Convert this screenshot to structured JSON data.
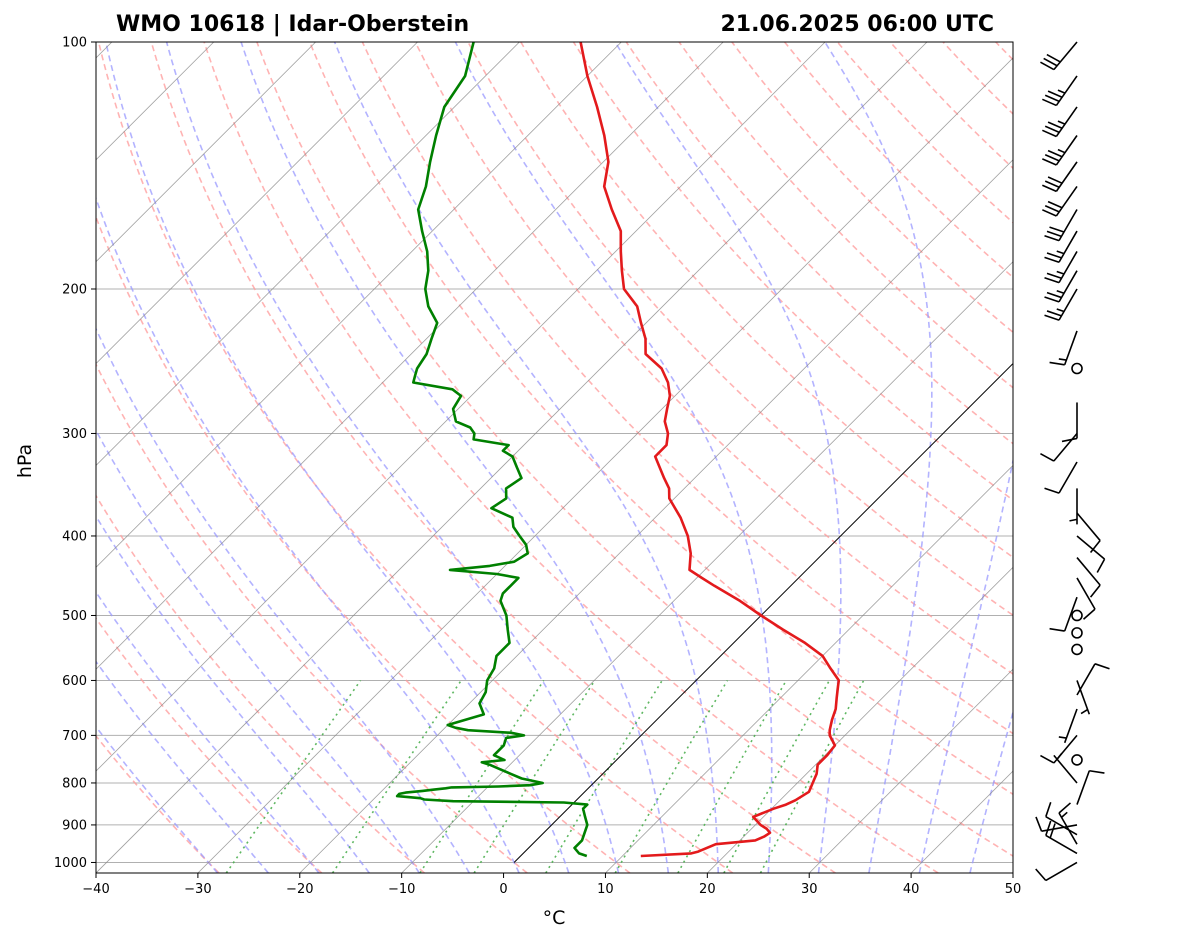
{
  "chart_data": {
    "type": "line",
    "title": "WMO 10618 | Idar-Oberstein",
    "datetime": "21.06.2025 06:00 UTC",
    "xlabel": "°C",
    "ylabel": "hPa",
    "xlim": [
      -40,
      50
    ],
    "ylim": [
      1030,
      100
    ],
    "y_scale": "log",
    "x_ticks": [
      -40,
      -30,
      -20,
      -10,
      0,
      10,
      20,
      30,
      40,
      50
    ],
    "x_tick_labels": [
      "−40",
      "−30",
      "−20",
      "−10",
      "0",
      "10",
      "20",
      "30",
      "40",
      "50"
    ],
    "y_ticks": [
      100,
      200,
      300,
      400,
      500,
      600,
      700,
      800,
      900,
      1000
    ],
    "y_tick_labels": [
      "100",
      "200",
      "300",
      "400",
      "500",
      "600",
      "700",
      "800",
      "900",
      "1000"
    ],
    "grid": true,
    "colors": {
      "temperature": "#e31a1c",
      "dewpoint": "#008000",
      "dry_adiabats": "#ff9999",
      "moist_adiabats": "#9999ff",
      "mixing_ratio": "#4caf50",
      "isotherms": "#888888",
      "zero_isotherm": "#000000"
    },
    "series": [
      {
        "name": "Temperature",
        "pressure": [
          982,
          975,
          970,
          950,
          940,
          930,
          920,
          910,
          900,
          880,
          860,
          850,
          840,
          820,
          800,
          780,
          760,
          740,
          720,
          700,
          690,
          670,
          650,
          630,
          610,
          600,
          580,
          560,
          540,
          520,
          500,
          480,
          460,
          450,
          440,
          420,
          400,
          380,
          360,
          350,
          340,
          320,
          310,
          300,
          290,
          280,
          270,
          260,
          250,
          240,
          230,
          220,
          210,
          200,
          190,
          180,
          170,
          160,
          150,
          140,
          130,
          120,
          110,
          100
        ],
        "temp": [
          11.8,
          16.5,
          17.0,
          18.0,
          21.5,
          22.0,
          22.2,
          21.5,
          20.5,
          19.0,
          20.2,
          21.0,
          21.5,
          22.0,
          21.5,
          21.0,
          20.2,
          20.2,
          20.0,
          18.5,
          18.0,
          17.2,
          16.5,
          15.5,
          14.5,
          14.0,
          12.0,
          10.0,
          7.0,
          3.5,
          0.0,
          -3.5,
          -7.5,
          -9.5,
          -11.5,
          -13.0,
          -15.0,
          -17.5,
          -20.5,
          -21.5,
          -23.0,
          -26.0,
          -26.0,
          -27.0,
          -28.5,
          -29.5,
          -30.5,
          -32.0,
          -34.0,
          -37.0,
          -38.5,
          -40.5,
          -42.5,
          -45.5,
          -47.5,
          -49.5,
          -51.5,
          -54.5,
          -57.5,
          -59.5,
          -62.5,
          -66.0,
          -70.0,
          -74.0
        ]
      },
      {
        "name": "Dewpoint",
        "pressure": [
          982,
          975,
          960,
          940,
          920,
          900,
          880,
          860,
          850,
          845,
          842,
          838,
          835,
          830,
          825,
          822,
          818,
          815,
          812,
          810,
          808,
          805,
          800,
          790,
          780,
          770,
          760,
          755,
          750,
          740,
          720,
          705,
          700,
          695,
          690,
          685,
          680,
          660,
          640,
          620,
          600,
          580,
          560,
          540,
          520,
          500,
          480,
          470,
          460,
          450,
          445,
          440,
          435,
          430,
          420,
          410,
          400,
          390,
          380,
          370,
          360,
          350,
          340,
          330,
          320,
          315,
          310,
          305,
          300,
          295,
          290,
          280,
          270,
          265,
          260,
          255,
          250,
          240,
          230,
          220,
          210,
          200,
          190,
          180,
          170,
          160,
          150,
          140,
          130,
          120,
          110,
          100
        ],
        "dewp": [
          6.5,
          5.5,
          4.5,
          4.5,
          4.0,
          3.5,
          2.5,
          1.5,
          1.5,
          -1.0,
          -12.0,
          -15.0,
          -15.5,
          -18.0,
          -18.0,
          -17.5,
          -16.0,
          -15.0,
          -14.0,
          -13.5,
          -9.0,
          -6.0,
          -5.0,
          -7.5,
          -9.0,
          -10.5,
          -12.0,
          -13.0,
          -11.0,
          -12.5,
          -12.5,
          -13.0,
          -11.5,
          -13.0,
          -17.5,
          -19.0,
          -20.0,
          -17.5,
          -19.0,
          -19.5,
          -20.5,
          -21.0,
          -22.0,
          -22.0,
          -23.5,
          -25.0,
          -27.0,
          -27.5,
          -27.5,
          -27.5,
          -30.0,
          -35.0,
          -31.5,
          -29.5,
          -29.0,
          -30.0,
          -31.5,
          -33.0,
          -34.0,
          -37.0,
          -36.5,
          -37.5,
          -37.0,
          -38.5,
          -40.0,
          -41.5,
          -41.5,
          -45.5,
          -46.0,
          -47.0,
          -49.0,
          -50.5,
          -51.0,
          -52.5,
          -57.0,
          -57.5,
          -58.0,
          -58.5,
          -59.5,
          -60.5,
          -63.0,
          -65.0,
          -66.5,
          -68.5,
          -71.0,
          -73.5,
          -75.0,
          -77.0,
          -79.0,
          -81.0,
          -82.0,
          -84.5
        ]
      }
    ],
    "wind_barbs": [
      {
        "p": 1000,
        "speed": 10,
        "dir": 240
      },
      {
        "p": 975,
        "speed": 20,
        "dir": 300
      },
      {
        "p": 950,
        "speed": 15,
        "dir": 330
      },
      {
        "p": 925,
        "speed": 10,
        "dir": 300
      },
      {
        "p": 900,
        "speed": 10,
        "dir": 260
      },
      {
        "p": 850,
        "speed": 10,
        "dir": 20
      },
      {
        "p": 800,
        "speed": 5,
        "dir": 320
      },
      {
        "p": 750,
        "speed": 0,
        "dir": 0
      },
      {
        "p": 700,
        "speed": 10,
        "dir": 220
      },
      {
        "p": 650,
        "speed": 5,
        "dir": 200
      },
      {
        "p": 625,
        "speed": 10,
        "dir": 30
      },
      {
        "p": 600,
        "speed": 5,
        "dir": 160
      },
      {
        "p": 550,
        "speed": 0,
        "dir": 0
      },
      {
        "p": 525,
        "speed": 0,
        "dir": 0
      },
      {
        "p": 500,
        "speed": 0,
        "dir": 0
      },
      {
        "p": 475,
        "speed": 10,
        "dir": 200
      },
      {
        "p": 450,
        "speed": 10,
        "dir": 150
      },
      {
        "p": 425,
        "speed": 10,
        "dir": 140
      },
      {
        "p": 400,
        "speed": 10,
        "dir": 130
      },
      {
        "p": 375,
        "speed": 10,
        "dir": 140
      },
      {
        "p": 350,
        "speed": 5,
        "dir": 180
      },
      {
        "p": 325,
        "speed": 10,
        "dir": 210
      },
      {
        "p": 300,
        "speed": 10,
        "dir": 220
      },
      {
        "p": 275,
        "speed": 10,
        "dir": 180
      },
      {
        "p": 250,
        "speed": 0,
        "dir": 0
      },
      {
        "p": 225,
        "speed": 15,
        "dir": 200
      },
      {
        "p": 200,
        "speed": 25,
        "dir": 210
      },
      {
        "p": 190,
        "speed": 25,
        "dir": 210
      },
      {
        "p": 180,
        "speed": 25,
        "dir": 210
      },
      {
        "p": 170,
        "speed": 25,
        "dir": 210
      },
      {
        "p": 160,
        "speed": 30,
        "dir": 210
      },
      {
        "p": 150,
        "speed": 30,
        "dir": 215
      },
      {
        "p": 140,
        "speed": 30,
        "dir": 215
      },
      {
        "p": 130,
        "speed": 35,
        "dir": 215
      },
      {
        "p": 120,
        "speed": 35,
        "dir": 215
      },
      {
        "p": 110,
        "speed": 35,
        "dir": 215
      },
      {
        "p": 100,
        "speed": 30,
        "dir": 220
      }
    ]
  }
}
